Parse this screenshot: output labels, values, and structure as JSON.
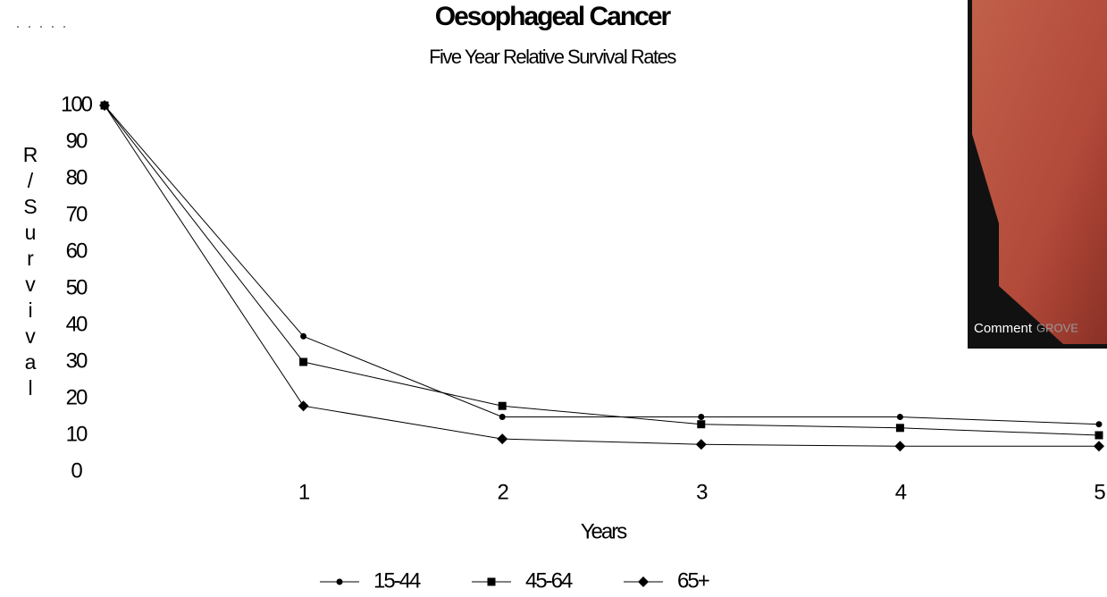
{
  "chart_data": {
    "type": "line",
    "title": "Oesophageal Cancer",
    "subtitle": "Five Year Relative Survival Rates",
    "x_label": "Years",
    "y_label": "R/Survival",
    "x": [
      0,
      1,
      2,
      3,
      4,
      5
    ],
    "xlim": [
      0,
      5
    ],
    "xticks": [
      1,
      2,
      3,
      4,
      5
    ],
    "ylim": [
      0,
      100
    ],
    "yticks": [
      0,
      10,
      20,
      30,
      40,
      50,
      60,
      70,
      80,
      90,
      100
    ],
    "grid": false,
    "legend": "bottom",
    "series": [
      {
        "name": "15-44",
        "color": "#000000",
        "marker": "circle",
        "values": [
          100,
          37,
          15,
          15,
          15,
          13
        ]
      },
      {
        "name": "45-64",
        "color": "#000000",
        "marker": "square",
        "values": [
          100,
          30,
          18,
          13,
          12,
          10
        ]
      },
      {
        "name": "65+",
        "color": "#000000",
        "marker": "diamond",
        "values": [
          100,
          18,
          9,
          7.5,
          7,
          7
        ]
      }
    ],
    "annotations": [
      "Comment",
      "GROVE"
    ]
  }
}
